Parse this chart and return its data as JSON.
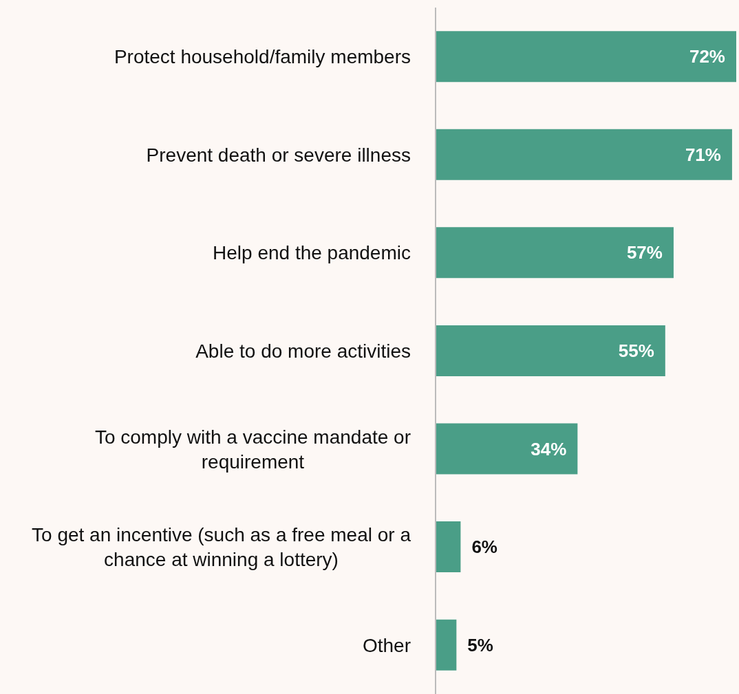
{
  "chart_data": {
    "type": "bar",
    "orientation": "horizontal",
    "categories": [
      "Protect household/family members",
      "Prevent death or severe illness",
      "Help end the pandemic",
      "Able to do more activities",
      "To comply with a vaccine mandate or requirement",
      "To get an incentive (such as a free meal or a chance at winning a lottery)",
      "Other"
    ],
    "values": [
      72,
      71,
      57,
      55,
      34,
      6,
      5
    ],
    "value_labels": [
      "72%",
      "71%",
      "57%",
      "55%",
      "34%",
      "6%",
      "5%"
    ],
    "color": "#4a9e87",
    "grid": false,
    "legend": false
  }
}
